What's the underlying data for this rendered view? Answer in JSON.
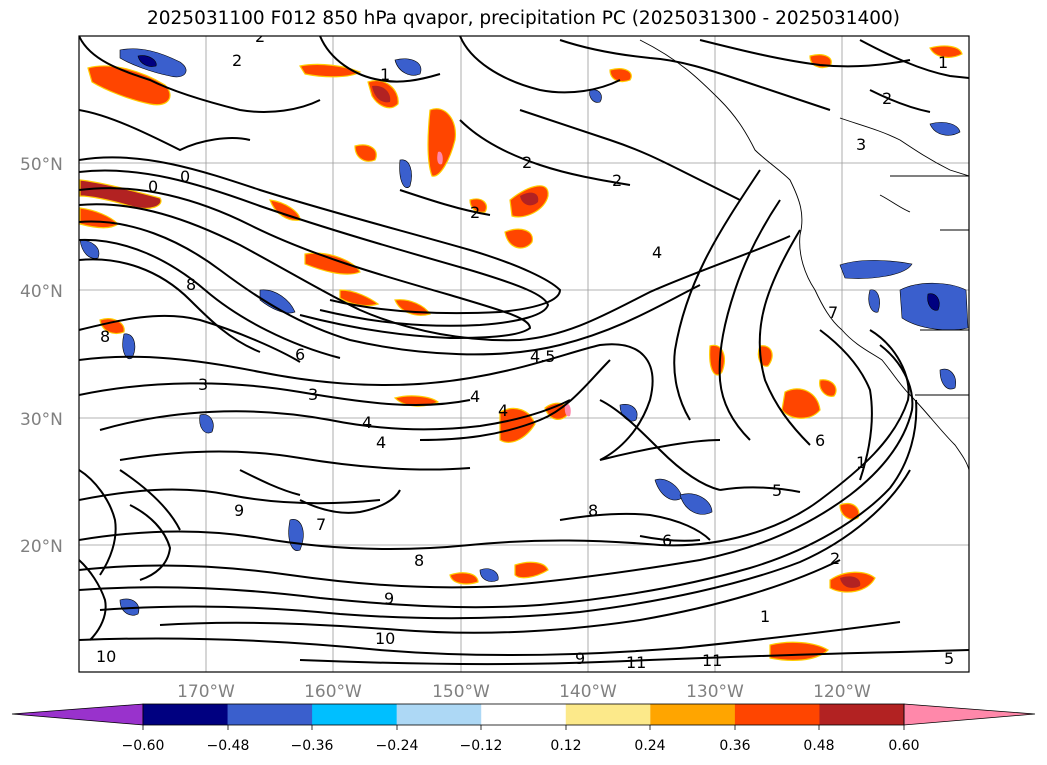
{
  "title": "2025031100 F012 850 hPa qvapor, precipitation PC (2025031300 - 2025031400)",
  "map": {
    "lon_range": [
      -180,
      -110
    ],
    "lat_range": [
      10,
      60
    ],
    "lat_labels": [
      "50°N",
      "40°N",
      "30°N",
      "20°N"
    ],
    "lon_labels": [
      "170°W",
      "160°W",
      "150°W",
      "140°W",
      "130°W",
      "120°W"
    ],
    "contour_labels": [
      "0",
      "0",
      "2",
      "2",
      "2",
      "2",
      "2",
      "2",
      "1",
      "1",
      "1",
      "3",
      "4",
      "4",
      "4",
      "4",
      "4.5",
      "4",
      "6",
      "6",
      "6",
      "7",
      "7",
      "8",
      "8",
      "8",
      "8",
      "9",
      "9",
      "9",
      "10",
      "10",
      "11",
      "11",
      "5",
      "5",
      "3",
      "3",
      "1",
      "2"
    ]
  },
  "colorbar": {
    "ticks": [
      "−0.60",
      "−0.48",
      "−0.36",
      "−0.24",
      "−0.12",
      "0.12",
      "0.24",
      "0.36",
      "0.48",
      "0.60"
    ],
    "colors": {
      "under": "#9932cc",
      "bins": [
        "#000080",
        "#3a5fcd",
        "#00bfff",
        "#add8f5",
        "#ffffff",
        "#fce98a",
        "#ffa500",
        "#ff4500",
        "#b22222"
      ],
      "over": "#ff88aa"
    }
  }
}
